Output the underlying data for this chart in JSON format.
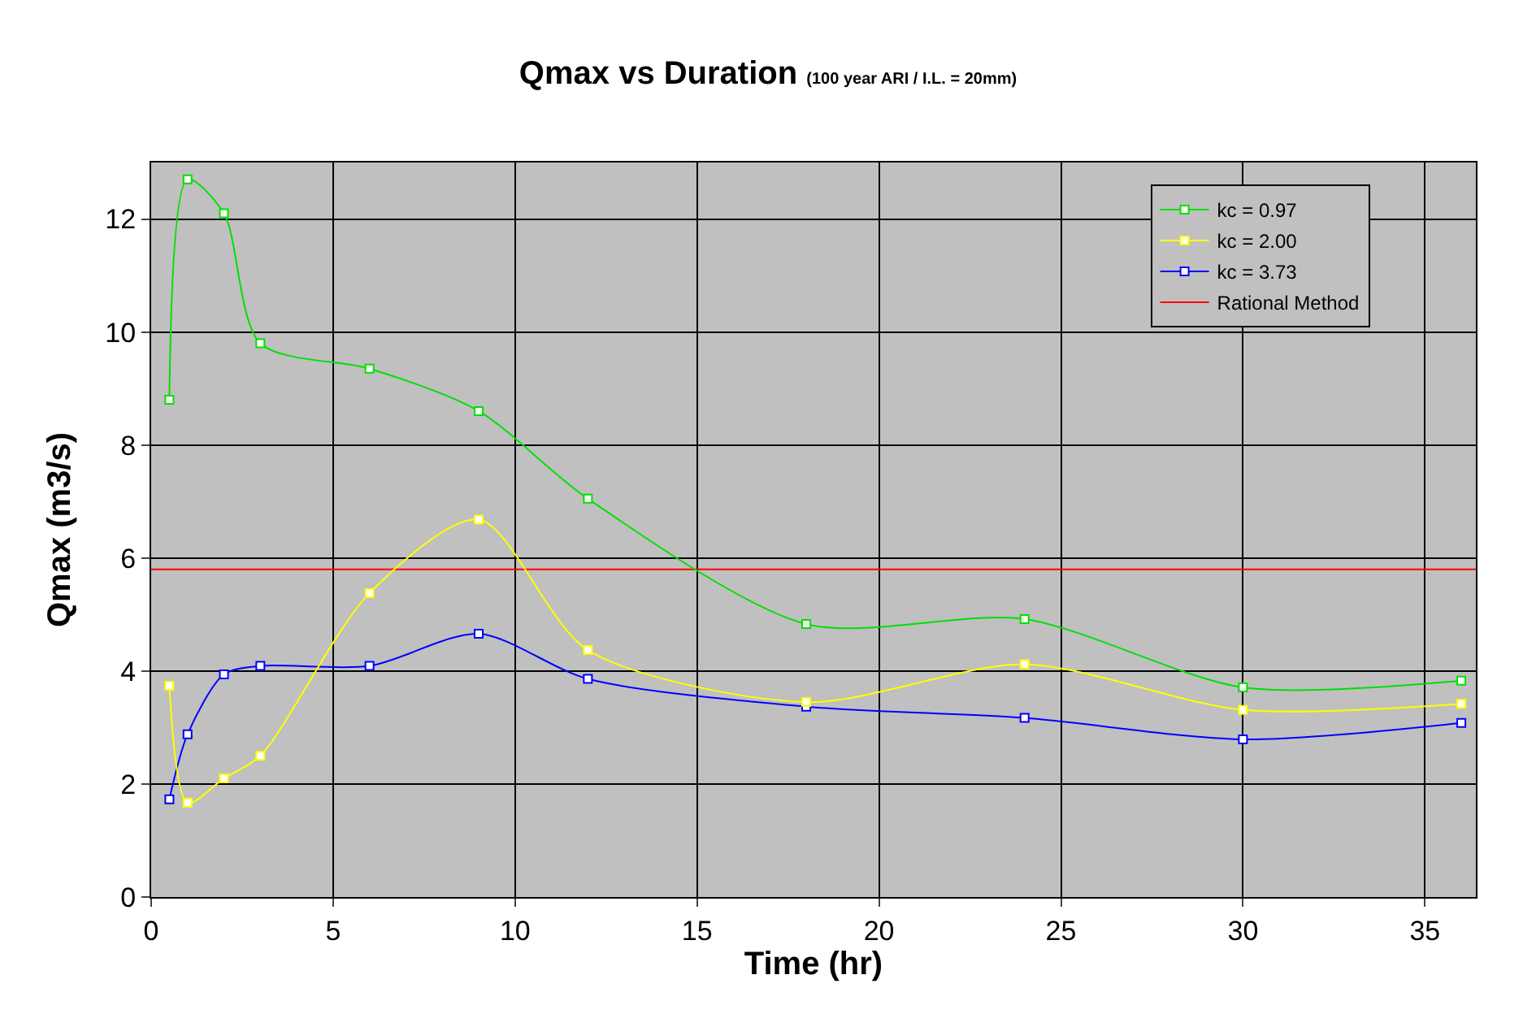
{
  "chart_data": {
    "type": "line",
    "title": "Qmax vs Duration",
    "subtitle": "(100 year ARI / I.L. = 20mm)",
    "xlabel": "Time (hr)",
    "ylabel": "Qmax (m3/s)",
    "x": [
      0.5,
      1,
      2,
      3,
      6,
      9,
      12,
      18,
      24,
      30,
      36
    ],
    "series": [
      {
        "name": "kc = 0.97",
        "color": "#00e000",
        "values": [
          8.8,
          12.7,
          12.1,
          9.8,
          9.35,
          8.6,
          7.05,
          4.83,
          4.92,
          3.71,
          3.83
        ]
      },
      {
        "name": "kc = 2.00",
        "color": "#ffff00",
        "values": [
          3.74,
          1.67,
          2.1,
          2.5,
          5.38,
          6.68,
          4.37,
          3.45,
          4.12,
          3.31,
          3.42
        ]
      },
      {
        "name": "kc = 3.73",
        "color": "#0000ff",
        "values": [
          1.73,
          2.88,
          3.94,
          4.09,
          4.09,
          4.66,
          3.86,
          3.37,
          3.17,
          2.79,
          3.08
        ]
      },
      {
        "name": "Rational Method",
        "color": "#ff0000",
        "type": "line",
        "marker": "none",
        "x": [
          0,
          36.4
        ],
        "values": [
          5.8,
          5.8
        ]
      }
    ],
    "xlim": [
      0,
      36.4
    ],
    "xticks": [
      0,
      5,
      10,
      15,
      20,
      25,
      30,
      35
    ],
    "ylim": [
      0,
      13
    ],
    "yticks": [
      0,
      2,
      4,
      6,
      8,
      10,
      12
    ],
    "grid": true,
    "legend": "top right",
    "marker": "square",
    "line_style": "solid"
  }
}
